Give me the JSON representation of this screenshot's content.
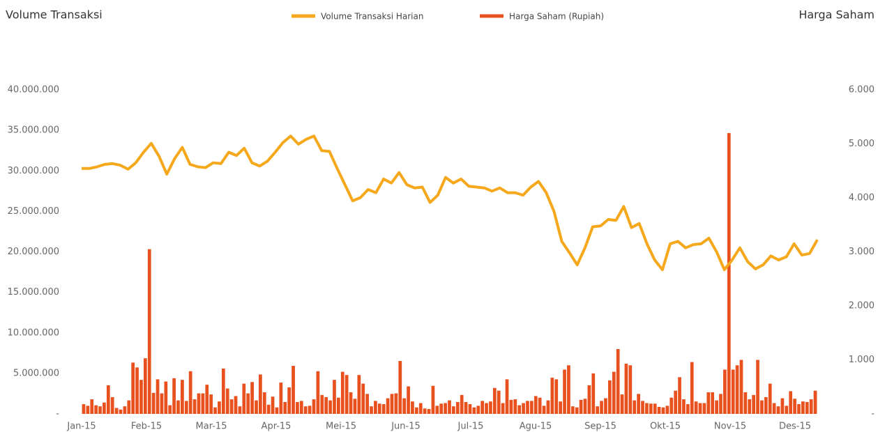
{
  "chart_data": {
    "type": "bar-line",
    "y_title": "Volume Transaksi",
    "y2_title": "Harga Saham",
    "xtick_labels": [
      "Jan-15",
      "Feb-15",
      "Mar-15",
      "Apr-15",
      "Mei-15",
      "Jun-15",
      "Jul-15",
      "Agu-15",
      "Sep-15",
      "Okt-15",
      "Nov-15",
      "Des-15"
    ],
    "ylim": [
      0,
      40000000
    ],
    "yticks": [
      {
        "value": 0,
        "label": "-"
      },
      {
        "value": 5000000,
        "label": "5.000.000"
      },
      {
        "value": 10000000,
        "label": "10.000.000"
      },
      {
        "value": 15000000,
        "label": "15.000.000"
      },
      {
        "value": 20000000,
        "label": "20.000.000"
      },
      {
        "value": 25000000,
        "label": "25.000.000"
      },
      {
        "value": 30000000,
        "label": "30.000.000"
      },
      {
        "value": 35000000,
        "label": "35.000.000"
      },
      {
        "value": 40000000,
        "label": "40.000.000"
      }
    ],
    "y2lim": [
      0,
      6000
    ],
    "y2ticks": [
      {
        "value": 0,
        "label": "-"
      },
      {
        "value": 1000,
        "label": "1.000"
      },
      {
        "value": 2000,
        "label": "2.000"
      },
      {
        "value": 3000,
        "label": "3.000"
      },
      {
        "value": 4000,
        "label": "4.000"
      },
      {
        "value": 5000,
        "label": "5.000"
      },
      {
        "value": 6000,
        "label": "6.000"
      }
    ],
    "series": [
      {
        "name": "Volume Transaksi Harian",
        "color": "#f5a81c",
        "kind": "line",
        "values": [
          30300000,
          30300000,
          30500000,
          30800000,
          30900000,
          30700000,
          30200000,
          31000000,
          32300000,
          33400000,
          31800000,
          29600000,
          31500000,
          32900000,
          30800000,
          30500000,
          30400000,
          31000000,
          30900000,
          32300000,
          31900000,
          32800000,
          31000000,
          30600000,
          31200000,
          32300000,
          33500000,
          34300000,
          33300000,
          33900000,
          34300000,
          32500000,
          32400000,
          30300000,
          28300000,
          26300000,
          26700000,
          27700000,
          27300000,
          29000000,
          28500000,
          29800000,
          28300000,
          27900000,
          28000000,
          26100000,
          27000000,
          29200000,
          28500000,
          29000000,
          28100000,
          28000000,
          27900000,
          27500000,
          27900000,
          27300000,
          27300000,
          27000000,
          28000000,
          28700000,
          27300000,
          25000000,
          21300000,
          19900000,
          18400000,
          20500000,
          23100000,
          23200000,
          24000000,
          23900000,
          25600000,
          23000000,
          23500000,
          21000000,
          19000000,
          17800000,
          21000000,
          21300000,
          20500000,
          20900000,
          21000000,
          21700000,
          20000000,
          17800000,
          19000000,
          20500000,
          18800000,
          17900000,
          18400000,
          19500000,
          19000000,
          19400000,
          21000000,
          19600000,
          19800000,
          21500000
        ]
      },
      {
        "name": "Harga Saham (Rupiah)",
        "color": "#e8501e",
        "kind": "bar",
        "axis": "y2",
        "values": [
          180,
          150,
          270,
          160,
          140,
          210,
          530,
          310,
          110,
          80,
          140,
          250,
          950,
          860,
          630,
          1030,
          3050,
          390,
          640,
          380,
          600,
          160,
          660,
          250,
          630,
          240,
          790,
          270,
          380,
          380,
          540,
          360,
          120,
          230,
          840,
          470,
          270,
          330,
          140,
          560,
          380,
          590,
          250,
          730,
          400,
          170,
          320,
          120,
          580,
          220,
          490,
          890,
          220,
          240,
          140,
          150,
          270,
          790,
          350,
          310,
          250,
          630,
          300,
          780,
          720,
          400,
          280,
          720,
          560,
          370,
          140,
          240,
          190,
          180,
          290,
          370,
          380,
          980,
          290,
          510,
          230,
          120,
          200,
          100,
          90,
          520,
          150,
          190,
          200,
          250,
          140,
          220,
          350,
          220,
          180,
          120,
          150,
          240,
          200,
          230,
          480,
          430,
          200,
          640,
          260,
          270,
          160,
          200,
          240,
          240,
          330,
          300,
          150,
          250,
          670,
          640,
          230,
          820,
          900,
          140,
          120,
          260,
          280,
          530,
          750,
          140,
          240,
          290,
          620,
          780,
          1200,
          360,
          930,
          900,
          250,
          370,
          240,
          200,
          190,
          190,
          130,
          120,
          150,
          300,
          430,
          680,
          270,
          180,
          960,
          230,
          200,
          200,
          400,
          400,
          250,
          370,
          820,
          5200,
          820,
          900,
          1000,
          400,
          270,
          350,
          1000,
          250,
          310,
          560,
          200,
          140,
          290,
          150,
          420,
          280,
          180,
          230,
          220,
          270,
          430
        ]
      }
    ]
  }
}
